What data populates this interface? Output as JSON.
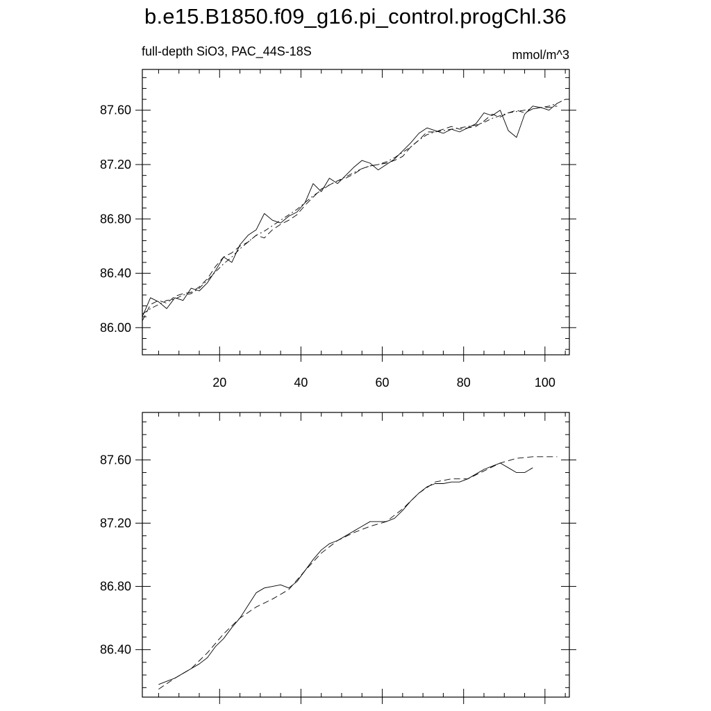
{
  "title": "b.e15.B1850.f09_g16.pi_control.progChl.36",
  "subtitle_left": "full-depth SiO3, PAC_44S-18S",
  "subtitle_right": "mmol/m^3",
  "chart_data": [
    {
      "type": "line",
      "panel": "top",
      "xlim": [
        1,
        106
      ],
      "ylim": [
        85.8,
        87.9
      ],
      "x_ticks": [
        20,
        40,
        60,
        80,
        100
      ],
      "x_tick_labels": [
        "20",
        "40",
        "60",
        "80",
        "100"
      ],
      "y_ticks": [
        86.0,
        86.4,
        86.8,
        87.2,
        87.6
      ],
      "y_tick_labels": [
        "86.00",
        "86.40",
        "86.80",
        "87.20",
        "87.60"
      ],
      "grid": false,
      "series": [
        {
          "style": "solid",
          "x": [
            1,
            3,
            5,
            7,
            9,
            11,
            13,
            15,
            17,
            19,
            21,
            23,
            25,
            27,
            29,
            31,
            33,
            35,
            37,
            39,
            41,
            43,
            45,
            47,
            49,
            51,
            53,
            55,
            57,
            59,
            61,
            63,
            65,
            67,
            69,
            71,
            73,
            75,
            77,
            79,
            81,
            83,
            85,
            87,
            89,
            91,
            93,
            95,
            97,
            99,
            101,
            103
          ],
          "y": [
            86.08,
            86.22,
            86.19,
            86.14,
            86.22,
            86.2,
            86.29,
            86.27,
            86.33,
            86.42,
            86.52,
            86.48,
            86.61,
            86.68,
            86.72,
            86.84,
            86.79,
            86.77,
            86.82,
            86.85,
            86.92,
            87.06,
            87.0,
            87.1,
            87.06,
            87.12,
            87.18,
            87.23,
            87.21,
            87.16,
            87.2,
            87.24,
            87.3,
            87.36,
            87.43,
            87.47,
            87.45,
            87.43,
            87.46,
            87.44,
            87.47,
            87.5,
            87.58,
            87.56,
            87.6,
            87.45,
            87.4,
            87.57,
            87.63,
            87.62,
            87.6,
            87.65
          ]
        },
        {
          "style": "dash",
          "x": [
            1,
            3,
            5,
            7,
            9,
            11,
            13,
            15,
            17,
            19,
            21,
            23,
            25,
            27,
            29,
            31,
            33,
            35,
            37,
            39,
            41,
            43,
            45,
            47,
            49,
            51,
            53,
            55,
            57,
            59,
            61,
            63,
            65,
            67,
            69,
            71,
            73,
            75,
            77,
            79,
            81,
            83,
            85,
            87,
            89,
            91,
            93,
            95,
            97,
            99,
            101,
            103
          ],
          "y": [
            86.05,
            86.17,
            86.2,
            86.18,
            86.23,
            86.25,
            86.26,
            86.3,
            86.36,
            86.45,
            86.52,
            86.55,
            86.6,
            86.63,
            86.68,
            86.66,
            86.72,
            86.76,
            86.79,
            86.83,
            86.9,
            86.96,
            87.02,
            87.05,
            87.08,
            87.1,
            87.13,
            87.17,
            87.19,
            87.2,
            87.21,
            87.23,
            87.26,
            87.33,
            87.38,
            87.44,
            87.44,
            87.46,
            87.48,
            87.46,
            87.47,
            87.48,
            87.52,
            87.57,
            87.55,
            87.58,
            87.6,
            87.58,
            87.61,
            87.62,
            87.62,
            87.63
          ]
        },
        {
          "style": "dashdot",
          "x": [
            1,
            3,
            5,
            7,
            9,
            11,
            13,
            15,
            17,
            19,
            21,
            23,
            25,
            27,
            29,
            31,
            33,
            35,
            37,
            39,
            41,
            43,
            45,
            47,
            49,
            51,
            53,
            55,
            57,
            59,
            61,
            63,
            65,
            67,
            69,
            71,
            73,
            75,
            77,
            79,
            81,
            83,
            85,
            87,
            89,
            91,
            93,
            95,
            97,
            99,
            101,
            103,
            105
          ],
          "y": [
            86.1,
            86.14,
            86.17,
            86.2,
            86.21,
            86.24,
            86.25,
            86.29,
            86.35,
            86.41,
            86.47,
            86.52,
            86.58,
            86.63,
            86.68,
            86.71,
            86.75,
            86.79,
            86.83,
            86.87,
            86.92,
            86.97,
            87.01,
            87.05,
            87.08,
            87.11,
            87.14,
            87.17,
            87.19,
            87.2,
            87.22,
            87.25,
            87.29,
            87.33,
            87.38,
            87.42,
            87.44,
            87.45,
            87.46,
            87.47,
            87.48,
            87.49,
            87.51,
            87.54,
            87.56,
            87.58,
            87.59,
            87.6,
            87.61,
            87.62,
            87.63,
            87.65,
            87.68
          ]
        }
      ]
    },
    {
      "type": "line",
      "panel": "bottom",
      "xlim": [
        1,
        106
      ],
      "ylim": [
        86.1,
        87.9
      ],
      "x_ticks": [
        20,
        40,
        60,
        80,
        100
      ],
      "y_ticks": [
        86.4,
        86.8,
        87.2,
        87.6
      ],
      "y_tick_labels": [
        "86.40",
        "86.80",
        "87.20",
        "87.60"
      ],
      "grid": false,
      "series": [
        {
          "style": "solid",
          "x": [
            5,
            7,
            9,
            11,
            13,
            15,
            17,
            19,
            21,
            23,
            25,
            27,
            29,
            31,
            33,
            35,
            37,
            39,
            41,
            43,
            45,
            47,
            49,
            51,
            53,
            55,
            57,
            59,
            61,
            63,
            65,
            67,
            69,
            71,
            73,
            75,
            77,
            79,
            81,
            83,
            85,
            87,
            89,
            91,
            93,
            95,
            97
          ],
          "y": [
            86.18,
            86.2,
            86.22,
            86.25,
            86.28,
            86.31,
            86.35,
            86.42,
            86.47,
            86.54,
            86.6,
            86.68,
            86.76,
            86.79,
            86.8,
            86.81,
            86.79,
            86.83,
            86.9,
            86.97,
            87.03,
            87.07,
            87.09,
            87.12,
            87.15,
            87.18,
            87.21,
            87.21,
            87.21,
            87.23,
            87.28,
            87.34,
            87.39,
            87.43,
            87.45,
            87.45,
            87.46,
            87.46,
            87.48,
            87.51,
            87.54,
            87.56,
            87.58,
            87.55,
            87.52,
            87.52,
            87.55
          ]
        },
        {
          "style": "dash",
          "x": [
            5,
            9,
            13,
            17,
            21,
            25,
            29,
            33,
            37,
            41,
            45,
            49,
            53,
            57,
            61,
            65,
            69,
            73,
            77,
            81,
            85,
            89,
            93,
            97,
            101,
            103
          ],
          "y": [
            86.15,
            86.22,
            86.28,
            86.38,
            86.5,
            86.6,
            86.67,
            86.72,
            86.78,
            86.9,
            87.01,
            87.09,
            87.14,
            87.18,
            87.21,
            87.29,
            87.39,
            87.46,
            87.48,
            87.48,
            87.53,
            87.58,
            87.61,
            87.62,
            87.62,
            87.62
          ]
        }
      ]
    }
  ]
}
